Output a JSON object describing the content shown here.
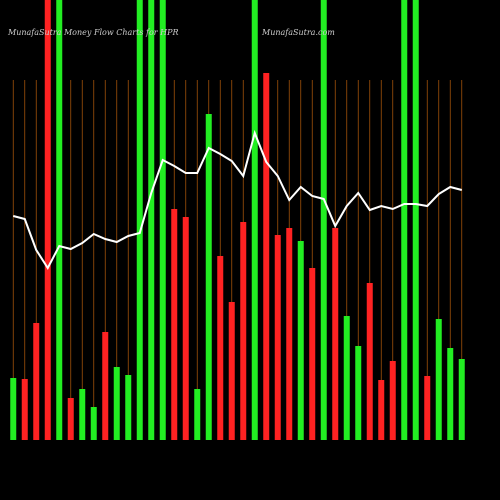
{
  "chart_data": {
    "type": "bar",
    "title": "MunafaSutra  Money Flow  Charts for HPR",
    "subtitle": "MunafaSutra.com",
    "categories": [
      null,
      null,
      null,
      null,
      null,
      null,
      null,
      null,
      null,
      null,
      null,
      null,
      null,
      null,
      null,
      null,
      null,
      null,
      null,
      null,
      null,
      null,
      null,
      null,
      null,
      null,
      null,
      null,
      null,
      null,
      null,
      null,
      null,
      null,
      null,
      null,
      null,
      null,
      null,
      null
    ],
    "series": [
      {
        "values": [
          62,
          61,
          117,
          440,
          440,
          42,
          51,
          33,
          108,
          73,
          65,
          440,
          440,
          440,
          231,
          223,
          51,
          326,
          184,
          138,
          218,
          440,
          367,
          205,
          212,
          199,
          172,
          440,
          212,
          124,
          94,
          157,
          60,
          79,
          440,
          440,
          64,
          121,
          92,
          81
        ],
        "colors": [
          "#22ee22",
          "#ff2222",
          "#ff2222",
          "#ff2222",
          "#22ee22",
          "#ff2222",
          "#22ee22",
          "#22ee22",
          "#ff2222",
          "#22ee22",
          "#22ee22",
          "#22ee22",
          "#22ee22",
          "#22ee22",
          "#ff2222",
          "#ff2222",
          "#22ee22",
          "#22ee22",
          "#ff2222",
          "#ff2222",
          "#ff2222",
          "#22ee22",
          "#ff2222",
          "#ff2222",
          "#ff2222",
          "#22ee22",
          "#ff2222",
          "#22ee22",
          "#ff2222",
          "#22ee22",
          "#22ee22",
          "#ff2222",
          "#ff2222",
          "#ff2222",
          "#22ee22",
          "#22ee22",
          "#ff2222",
          "#22ee22",
          "#22ee22",
          "#22ee22"
        ]
      },
      {
        "type": "line",
        "color": "#ffffff",
        "values": [
          224,
          221,
          190,
          172,
          194,
          191,
          197,
          206,
          201,
          198,
          204,
          207,
          247,
          280,
          274,
          267,
          267,
          292,
          286,
          279,
          264,
          307,
          278,
          264,
          240,
          253,
          244,
          241,
          214,
          234,
          247,
          230,
          234,
          231,
          236,
          236,
          234,
          246,
          253,
          250
        ]
      }
    ],
    "ylim": [
      0,
      440
    ],
    "grid_color": "#a0520a"
  }
}
